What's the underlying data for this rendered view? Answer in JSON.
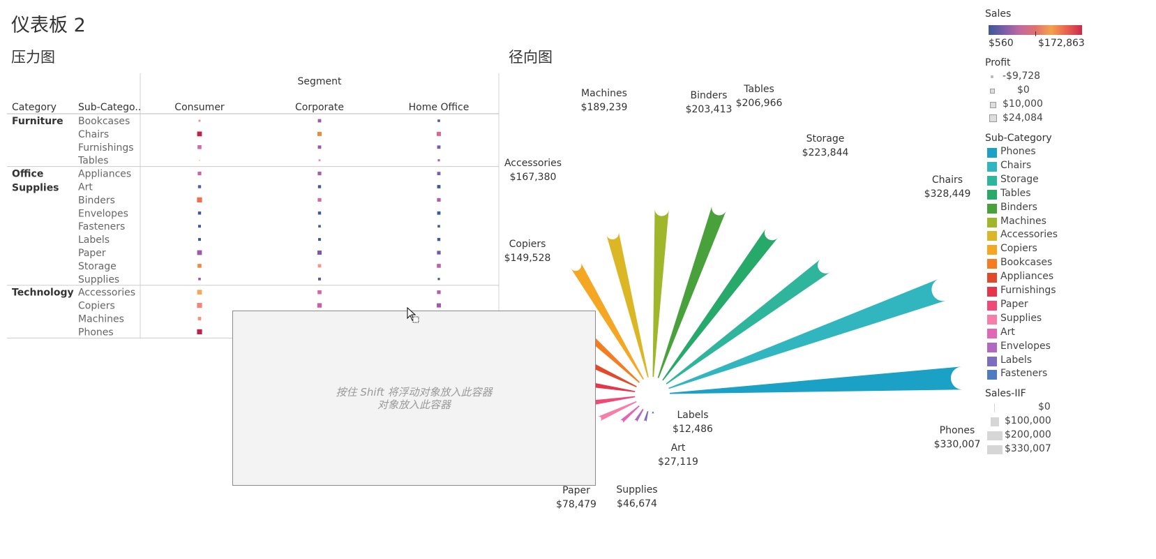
{
  "dashboard_title": "仪表板 2",
  "heatmap_title": "压力图",
  "radial_title": "径向图",
  "dropzone": {
    "line1": "按住 Shift 将浮动对象放入此容器",
    "line2": "对象放入此容器"
  },
  "legend": {
    "sales": {
      "title": "Sales",
      "min_label": "$560",
      "max_label": "$172,863",
      "gradient": [
        "#3b5998",
        "#7b5ea7",
        "#c06aa0",
        "#e0716f",
        "#f3a24c",
        "#e8634f",
        "#c92b4a"
      ]
    },
    "profit": {
      "title": "Profit",
      "items": [
        "-$9,728",
        "$0",
        "$10,000",
        "$24,084"
      ]
    },
    "subcategory": {
      "title": "Sub-Category",
      "items": [
        {
          "label": "Phones",
          "color": "#1ba0c6"
        },
        {
          "label": "Chairs",
          "color": "#31b6c0"
        },
        {
          "label": "Storage",
          "color": "#2fb59b"
        },
        {
          "label": "Tables",
          "color": "#27a96a"
        },
        {
          "label": "Binders",
          "color": "#48a13b"
        },
        {
          "label": "Machines",
          "color": "#a0b62b"
        },
        {
          "label": "Accessories",
          "color": "#dbb726"
        },
        {
          "label": "Copiers",
          "color": "#f5a623"
        },
        {
          "label": "Bookcases",
          "color": "#f57d1f"
        },
        {
          "label": "Appliances",
          "color": "#e2492b"
        },
        {
          "label": "Furnishings",
          "color": "#e8344a"
        },
        {
          "label": "Paper",
          "color": "#ef4a75"
        },
        {
          "label": "Supplies",
          "color": "#f57fa9"
        },
        {
          "label": "Art",
          "color": "#e266b6"
        },
        {
          "label": "Envelopes",
          "color": "#b068c2"
        },
        {
          "label": "Labels",
          "color": "#7e6cc2"
        },
        {
          "label": "Fasteners",
          "color": "#4f7bc0"
        }
      ]
    },
    "sales_iif": {
      "title": "Sales-IIF",
      "items": [
        "$0",
        "$100,000",
        "$200,000",
        "$330,007"
      ]
    }
  },
  "chart_data": [
    {
      "type": "heatmap",
      "title": "压力图",
      "column_group_label": "Segment",
      "row_headers": [
        "Category",
        "Sub-Catego.."
      ],
      "columns": [
        "Consumer",
        "Corporate",
        "Home Office"
      ],
      "categories": [
        {
          "name": "Furniture",
          "subcategories": [
            {
              "name": "Bookcases",
              "cells": [
                {
                  "size": 0.35,
                  "color": "#f08a8f"
                },
                {
                  "size": 0.6,
                  "color": "#a05aa6"
                },
                {
                  "size": 0.45,
                  "color": "#5a55a0"
                }
              ]
            },
            {
              "name": "Chairs",
              "cells": [
                {
                  "size": 0.85,
                  "color": "#c1204a"
                },
                {
                  "size": 0.75,
                  "color": "#ee8a3c"
                },
                {
                  "size": 0.75,
                  "color": "#e0658f"
                }
              ]
            },
            {
              "name": "Furnishings",
              "cells": [
                {
                  "size": 0.7,
                  "color": "#d06aa5"
                },
                {
                  "size": 0.6,
                  "color": "#9a5aaa"
                },
                {
                  "size": 0.6,
                  "color": "#7b5aaa"
                }
              ]
            },
            {
              "name": "Tables",
              "cells": [
                {
                  "size": 0.15,
                  "color": "#f0a040"
                },
                {
                  "size": 0.35,
                  "color": "#f08aa0"
                },
                {
                  "size": 0.4,
                  "color": "#b060a8"
                }
              ]
            }
          ]
        },
        {
          "name": "Office\nSupplies",
          "subcategories": [
            {
              "name": "Appliances",
              "cells": [
                {
                  "size": 0.65,
                  "color": "#c866a8"
                },
                {
                  "size": 0.65,
                  "color": "#a460a8"
                },
                {
                  "size": 0.6,
                  "color": "#7e5cb0"
                }
              ]
            },
            {
              "name": "Art",
              "cells": [
                {
                  "size": 0.55,
                  "color": "#5060a8"
                },
                {
                  "size": 0.55,
                  "color": "#3f5a98"
                },
                {
                  "size": 0.6,
                  "color": "#3f5a98"
                }
              ]
            },
            {
              "name": "Binders",
              "cells": [
                {
                  "size": 0.9,
                  "color": "#ef6f4f"
                },
                {
                  "size": 0.65,
                  "color": "#d06aa5"
                },
                {
                  "size": 0.65,
                  "color": "#b060a8"
                }
              ]
            },
            {
              "name": "Envelopes",
              "cells": [
                {
                  "size": 0.55,
                  "color": "#3f5a98"
                },
                {
                  "size": 0.55,
                  "color": "#3f5a98"
                },
                {
                  "size": 0.6,
                  "color": "#3f5a98"
                }
              ]
            },
            {
              "name": "Fasteners",
              "cells": [
                {
                  "size": 0.5,
                  "color": "#3f5a98"
                },
                {
                  "size": 0.45,
                  "color": "#3f5a98"
                },
                {
                  "size": 0.45,
                  "color": "#3f5a98"
                }
              ]
            },
            {
              "name": "Labels",
              "cells": [
                {
                  "size": 0.5,
                  "color": "#3f5a98"
                },
                {
                  "size": 0.5,
                  "color": "#3f5a98"
                },
                {
                  "size": 0.55,
                  "color": "#3f5a98"
                }
              ]
            },
            {
              "name": "Paper",
              "cells": [
                {
                  "size": 0.85,
                  "color": "#a05aa8"
                },
                {
                  "size": 0.75,
                  "color": "#8058a8"
                },
                {
                  "size": 0.65,
                  "color": "#7058a5"
                }
              ]
            },
            {
              "name": "Storage",
              "cells": [
                {
                  "size": 0.7,
                  "color": "#ef8a40"
                },
                {
                  "size": 0.6,
                  "color": "#f3948a"
                },
                {
                  "size": 0.7,
                  "color": "#c060a5"
                }
              ]
            },
            {
              "name": "Supplies",
              "cells": [
                {
                  "size": 0.45,
                  "color": "#9a5aaa"
                },
                {
                  "size": 0.5,
                  "color": "#5a58a8"
                },
                {
                  "size": 0.4,
                  "color": "#3f5a98"
                }
              ]
            }
          ]
        },
        {
          "name": "Technology",
          "subcategories": [
            {
              "name": "Accessories",
              "cells": [
                {
                  "size": 0.85,
                  "color": "#f3a85a"
                },
                {
                  "size": 0.7,
                  "color": "#d865a5"
                },
                {
                  "size": 0.65,
                  "color": "#b060a8"
                }
              ]
            },
            {
              "name": "Copiers",
              "cells": [
                {
                  "size": 0.9,
                  "color": "#f0857a"
                },
                {
                  "size": 0.8,
                  "color": "#c860a8"
                },
                {
                  "size": 0.75,
                  "color": "#a05aa8"
                }
              ]
            },
            {
              "name": "Machines",
              "cells": [
                {
                  "size": 0.6,
                  "color": "#f3947a"
                },
                {
                  "size": 0.6,
                  "color": "#d06aa5"
                },
                {
                  "size": 0.55,
                  "color": "#b060a8"
                }
              ]
            },
            {
              "name": "Phones",
              "cells": [
                {
                  "size": 0.9,
                  "color": "#c1204a"
                },
                {
                  "size": 0.8,
                  "color": "#e8634f"
                },
                {
                  "size": 0.75,
                  "color": "#d065a5"
                }
              ]
            }
          ]
        }
      ]
    },
    {
      "type": "radial_bar",
      "title": "径向图",
      "series": [
        {
          "name": "Phones",
          "value": 330007,
          "label": "Phones",
          "value_label": "$330,007"
        },
        {
          "name": "Chairs",
          "value": 328449,
          "label": "Chairs",
          "value_label": "$328,449"
        },
        {
          "name": "Storage",
          "value": 223844,
          "label": "Storage",
          "value_label": "$223,844"
        },
        {
          "name": "Tables",
          "value": 206966,
          "label": "Tables",
          "value_label": "$206,966"
        },
        {
          "name": "Binders",
          "value": 203413,
          "label": "Binders",
          "value_label": "$203,413"
        },
        {
          "name": "Machines",
          "value": 189239,
          "label": "Machines",
          "value_label": "$189,239"
        },
        {
          "name": "Accessories",
          "value": 167380,
          "label": "Accessories",
          "value_label": "$167,380"
        },
        {
          "name": "Copiers",
          "value": 149528,
          "label": "Copiers",
          "value_label": "$149,528"
        },
        {
          "name": "Bookcases",
          "value": 114880,
          "label": "",
          "value_label": ""
        },
        {
          "name": "Appliances",
          "value": 107532,
          "label": "",
          "value_label": ""
        },
        {
          "name": "Furnishings",
          "value": 91705,
          "label": "",
          "value_label": ""
        },
        {
          "name": "Paper",
          "value": 78479,
          "label": "Paper",
          "value_label": "$78,479"
        },
        {
          "name": "Supplies",
          "value": 46674,
          "label": "Supplies",
          "value_label": "$46,674"
        },
        {
          "name": "Art",
          "value": 27119,
          "label": "Art",
          "value_label": "$27,119"
        },
        {
          "name": "Envelopes",
          "value": 16476,
          "label": "",
          "value_label": ""
        },
        {
          "name": "Labels",
          "value": 12486,
          "label": "Labels",
          "value_label": "$12,486"
        },
        {
          "name": "Fasteners",
          "value": 3024,
          "label": "",
          "value_label": ""
        }
      ]
    }
  ]
}
